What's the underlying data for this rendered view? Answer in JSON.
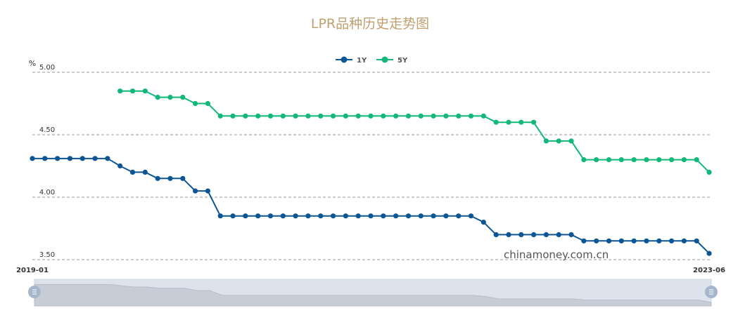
{
  "chart_data": {
    "type": "line",
    "title": "LPR品种历史走势图",
    "ylabel": "%",
    "ylim": [
      3.5,
      5.0
    ],
    "yticks": [
      "3.50",
      "4.00",
      "4.50",
      "5.00"
    ],
    "x_start_label": "2019-01",
    "x_end_label": "2023-06",
    "legend_position": "top-center",
    "grid": "horizontal dashed",
    "series": [
      {
        "name": "1Y",
        "color": "#0d5696",
        "values": [
          4.31,
          4.31,
          4.31,
          4.31,
          4.31,
          4.31,
          4.31,
          4.25,
          4.2,
          4.2,
          4.15,
          4.15,
          4.15,
          4.05,
          4.05,
          3.85,
          3.85,
          3.85,
          3.85,
          3.85,
          3.85,
          3.85,
          3.85,
          3.85,
          3.85,
          3.85,
          3.85,
          3.85,
          3.85,
          3.85,
          3.85,
          3.85,
          3.85,
          3.85,
          3.85,
          3.85,
          3.8,
          3.7,
          3.7,
          3.7,
          3.7,
          3.7,
          3.7,
          3.7,
          3.65,
          3.65,
          3.65,
          3.65,
          3.65,
          3.65,
          3.65,
          3.65,
          3.65,
          3.65,
          3.55
        ]
      },
      {
        "name": "5Y",
        "color": "#11b87a",
        "values": [
          null,
          null,
          null,
          null,
          null,
          null,
          null,
          4.85,
          4.85,
          4.85,
          4.8,
          4.8,
          4.8,
          4.75,
          4.75,
          4.65,
          4.65,
          4.65,
          4.65,
          4.65,
          4.65,
          4.65,
          4.65,
          4.65,
          4.65,
          4.65,
          4.65,
          4.65,
          4.65,
          4.65,
          4.65,
          4.65,
          4.65,
          4.65,
          4.65,
          4.65,
          4.65,
          4.6,
          4.6,
          4.6,
          4.6,
          4.45,
          4.45,
          4.45,
          4.3,
          4.3,
          4.3,
          4.3,
          4.3,
          4.3,
          4.3,
          4.3,
          4.3,
          4.3,
          4.2
        ]
      }
    ]
  },
  "watermark": "chinamoney.com.cn",
  "colors": {
    "title": "#c0a070",
    "grid": "#999999",
    "axis_text": "#333333",
    "slider_bg": "#dde3ec",
    "slider_area": "#c7cdd7",
    "slider_handle": "#a6b6cc"
  }
}
